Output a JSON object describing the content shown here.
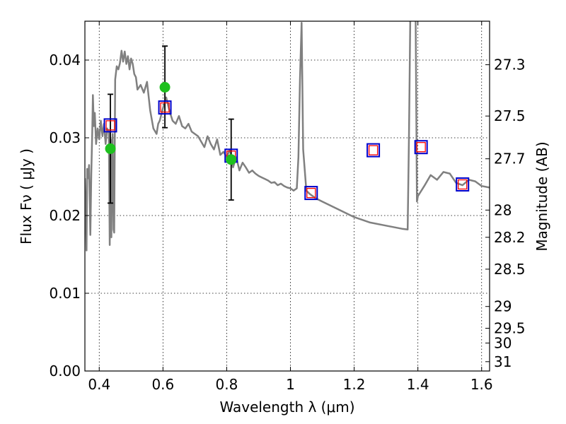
{
  "chart_data": {
    "type": "line",
    "xlabel": "Wavelength  λ (μm)",
    "ylabel": "Flux  Fν  ( μJy )",
    "y2label": "Magnitude (AB)",
    "xlim": [
      0.355,
      1.625
    ],
    "ylim": [
      0.0,
      0.045
    ],
    "grid": true,
    "xticks": [
      0.4,
      0.6,
      0.8,
      1.0,
      1.2,
      1.4,
      1.6
    ],
    "xtick_labels": [
      "0.4",
      "0.6",
      "0.8",
      "1",
      "1.2",
      "1.4",
      "1.6"
    ],
    "yticks": [
      0.0,
      0.01,
      0.02,
      0.03,
      0.04
    ],
    "ytick_labels": [
      "0.00",
      "0.01",
      "0.02",
      "0.03",
      "0.04"
    ],
    "y2ticks": [
      {
        "label": "27.3",
        "flux": 0.0394
      },
      {
        "label": "27.5",
        "flux": 0.0328
      },
      {
        "label": "27.7",
        "flux": 0.0273
      },
      {
        "label": "28",
        "flux": 0.0207
      },
      {
        "label": "28.2",
        "flux": 0.0172
      },
      {
        "label": "28.5",
        "flux": 0.0131
      },
      {
        "label": "29",
        "flux": 0.0083
      },
      {
        "label": "29.5",
        "flux": 0.0055
      },
      {
        "label": "30",
        "flux": 0.0036
      },
      {
        "label": "31",
        "flux": 0.0012
      }
    ],
    "colors": {
      "model": "#808080",
      "observed": "#1ec01e",
      "errorbar": "#000000",
      "model_box": "#0000cc",
      "model_box_inner": "#ff0000"
    },
    "series": [
      {
        "type": "line",
        "x": [
          0.355,
          0.36,
          0.362,
          0.365,
          0.368,
          0.372,
          0.375,
          0.378,
          0.38,
          0.383,
          0.386,
          0.39,
          0.395,
          0.4,
          0.405,
          0.41,
          0.415,
          0.42,
          0.425,
          0.43,
          0.433,
          0.436,
          0.438,
          0.44,
          0.442,
          0.445,
          0.447,
          0.45,
          0.455,
          0.46,
          0.465,
          0.47,
          0.475,
          0.48,
          0.485,
          0.49,
          0.495,
          0.5,
          0.505,
          0.51,
          0.515,
          0.52,
          0.53,
          0.54,
          0.55,
          0.56,
          0.57,
          0.58,
          0.585,
          0.59,
          0.6,
          0.61,
          0.62,
          0.63,
          0.64,
          0.65,
          0.66,
          0.67,
          0.68,
          0.69,
          0.7,
          0.71,
          0.72,
          0.73,
          0.74,
          0.75,
          0.76,
          0.77,
          0.78,
          0.79,
          0.8,
          0.81,
          0.82,
          0.83,
          0.84,
          0.85,
          0.86,
          0.87,
          0.88,
          0.89,
          0.9,
          0.91,
          0.92,
          0.93,
          0.94,
          0.95,
          0.96,
          0.97,
          0.98,
          0.99,
          1.0,
          1.01,
          1.02,
          1.025,
          1.03,
          1.035,
          1.04,
          1.05,
          1.06,
          1.08,
          1.1,
          1.15,
          1.2,
          1.25,
          1.3,
          1.35,
          1.368,
          1.372,
          1.376,
          1.38,
          1.385,
          1.39,
          1.393,
          1.397,
          1.4,
          1.42,
          1.44,
          1.46,
          1.48,
          1.5,
          1.52,
          1.54,
          1.56,
          1.58,
          1.6,
          1.625
        ],
        "y": [
          0.0248,
          0.0155,
          0.026,
          0.0248,
          0.0265,
          0.0175,
          0.0252,
          0.0308,
          0.0355,
          0.0315,
          0.0332,
          0.0292,
          0.0312,
          0.0298,
          0.0322,
          0.0302,
          0.0318,
          0.0292,
          0.0312,
          0.0308,
          0.0162,
          0.0298,
          0.0172,
          0.0252,
          0.0305,
          0.0182,
          0.0178,
          0.0375,
          0.0392,
          0.0388,
          0.0396,
          0.0412,
          0.0398,
          0.0411,
          0.0395,
          0.0405,
          0.0388,
          0.0402,
          0.0395,
          0.0382,
          0.0378,
          0.0362,
          0.0368,
          0.0358,
          0.0372,
          0.0335,
          0.0312,
          0.0305,
          0.0318,
          0.0322,
          0.0338,
          0.0352,
          0.0335,
          0.0322,
          0.0318,
          0.0328,
          0.0315,
          0.0312,
          0.0318,
          0.0308,
          0.0305,
          0.0302,
          0.0295,
          0.0288,
          0.0302,
          0.0292,
          0.0285,
          0.0298,
          0.0278,
          0.0282,
          0.0275,
          0.0285,
          0.0262,
          0.0275,
          0.0258,
          0.0268,
          0.0262,
          0.0255,
          0.0258,
          0.0254,
          0.0251,
          0.0249,
          0.0247,
          0.0245,
          0.0242,
          0.0243,
          0.0239,
          0.0241,
          0.0238,
          0.0236,
          0.0235,
          0.0232,
          0.0235,
          0.0275,
          0.0375,
          0.0448,
          0.0285,
          0.0232,
          0.0228,
          0.0222,
          0.0218,
          0.0208,
          0.0198,
          0.0191,
          0.0187,
          0.0183,
          0.0182,
          0.0305,
          0.0455,
          0.0455,
          0.0455,
          0.0455,
          0.0455,
          0.0218,
          0.0225,
          0.0238,
          0.0252,
          0.0246,
          0.0256,
          0.0254,
          0.0242,
          0.0239,
          0.0246,
          0.0244,
          0.0238,
          0.0236
        ],
        "color": "#808080"
      }
    ],
    "model_points": [
      {
        "x": 0.435,
        "y": 0.0316
      },
      {
        "x": 0.606,
        "y": 0.0339
      },
      {
        "x": 0.814,
        "y": 0.0277
      },
      {
        "x": 1.065,
        "y": 0.0229
      },
      {
        "x": 1.26,
        "y": 0.0284
      },
      {
        "x": 1.41,
        "y": 0.0288
      },
      {
        "x": 1.54,
        "y": 0.024
      }
    ],
    "observed_points": [
      {
        "x": 0.435,
        "y": 0.0286,
        "err_low": 0.0216,
        "err_high": 0.0356
      },
      {
        "x": 0.606,
        "y": 0.0365,
        "err_low": 0.0313,
        "err_high": 0.0418
      },
      {
        "x": 0.814,
        "y": 0.0272,
        "err_low": 0.022,
        "err_high": 0.0324
      }
    ]
  }
}
